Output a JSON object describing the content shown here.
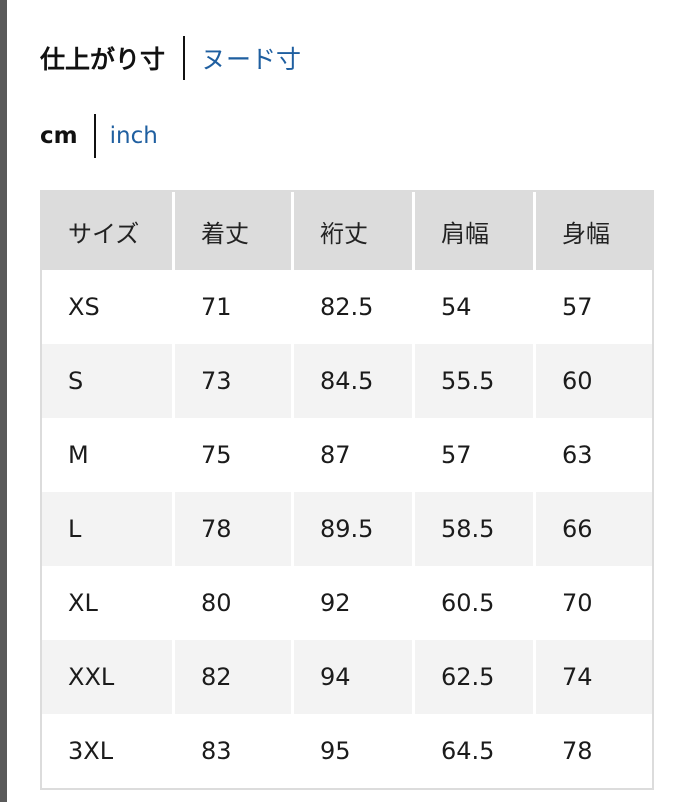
{
  "measure_toggle": {
    "active": "仕上がり寸",
    "other": "ヌード寸"
  },
  "unit_toggle": {
    "active": "cm",
    "other": "inch"
  },
  "table": {
    "headers": [
      "サイズ",
      "着丈",
      "裄丈",
      "肩幅",
      "身幅"
    ],
    "rows": [
      [
        "XS",
        "71",
        "82.5",
        "54",
        "57"
      ],
      [
        "S",
        "73",
        "84.5",
        "55.5",
        "60"
      ],
      [
        "M",
        "75",
        "87",
        "57",
        "63"
      ],
      [
        "L",
        "78",
        "89.5",
        "58.5",
        "66"
      ],
      [
        "XL",
        "80",
        "92",
        "60.5",
        "70"
      ],
      [
        "XXL",
        "82",
        "94",
        "62.5",
        "74"
      ],
      [
        "3XL",
        "83",
        "95",
        "64.5",
        "78"
      ]
    ]
  },
  "colors": {
    "link": "#1f5fa0",
    "header_bg": "#dcdcdc",
    "alt_row_bg": "#f3f3f3"
  }
}
